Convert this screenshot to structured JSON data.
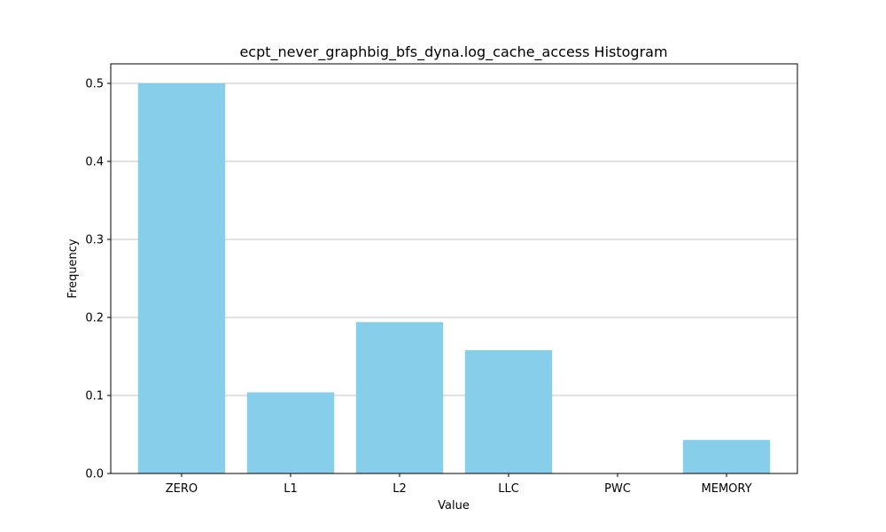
{
  "chart_data": {
    "type": "bar",
    "title": "ecpt_never_graphbig_bfs_dyna.log_cache_access Histogram",
    "xlabel": "Value",
    "ylabel": "Frequency",
    "categories": [
      "ZERO",
      "L1",
      "L2",
      "LLC",
      "PWC",
      "MEMORY"
    ],
    "values": [
      0.5,
      0.104,
      0.194,
      0.158,
      0.0,
      0.043
    ],
    "ylim": [
      0,
      0.525
    ],
    "yticks": [
      0.0,
      0.1,
      0.2,
      0.3,
      0.4,
      0.5
    ],
    "ytick_labels": [
      "0.0",
      "0.1",
      "0.2",
      "0.3",
      "0.4",
      "0.5"
    ],
    "grid": "horizontal",
    "bar_color": "#87CEEB"
  }
}
